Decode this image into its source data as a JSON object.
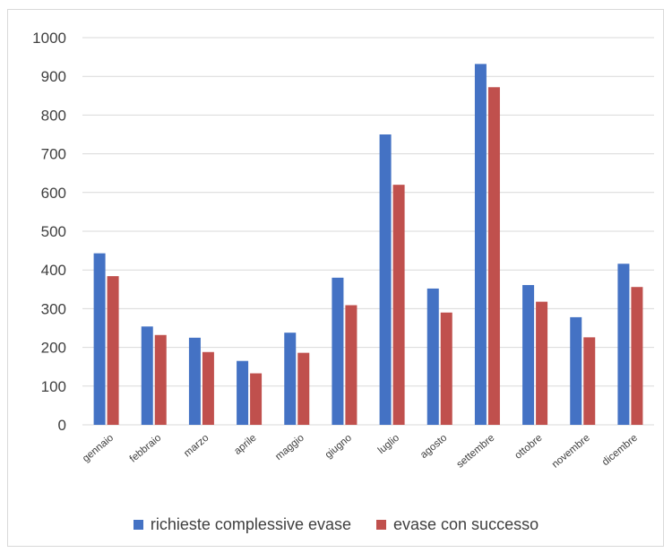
{
  "chart_data": {
    "type": "bar",
    "categories": [
      "gennaio",
      "febbraio",
      "marzo",
      "aprile",
      "maggio",
      "giugno",
      "luglio",
      "agosto",
      "settembre",
      "ottobre",
      "novembre",
      "dicembre"
    ],
    "series": [
      {
        "name": "richieste complessive evase",
        "color": "#4472C4",
        "values": [
          443,
          254,
          225,
          165,
          238,
          380,
          750,
          352,
          932,
          361,
          278,
          416
        ]
      },
      {
        "name": "evase con successo",
        "color": "#C0504D",
        "values": [
          384,
          232,
          188,
          133,
          186,
          309,
          620,
          290,
          872,
          318,
          226,
          356
        ]
      }
    ],
    "yticks": [
      "0",
      "100",
      "200",
      "300",
      "400",
      "500",
      "600",
      "700",
      "800",
      "900",
      "1000"
    ],
    "ylim": [
      0,
      1000
    ],
    "grid": true,
    "legend_position": "bottom",
    "title": "",
    "xlabel": "",
    "ylabel": ""
  }
}
